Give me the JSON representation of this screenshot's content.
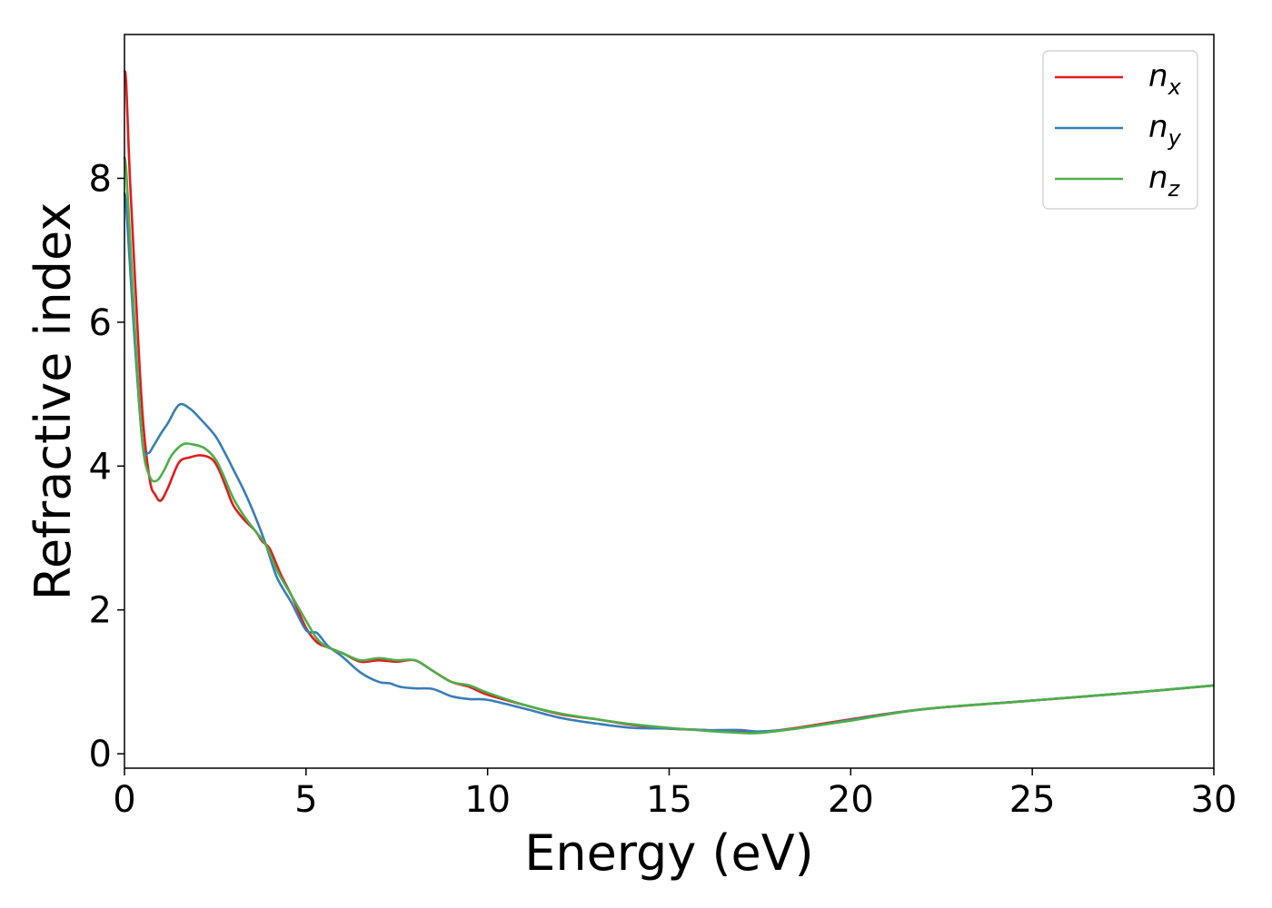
{
  "chart_data": {
    "type": "line",
    "title": "",
    "xlabel": "Energy (eV)",
    "ylabel": "Refractive index",
    "xlim": [
      0,
      30
    ],
    "ylim": [
      -0.2,
      10.0
    ],
    "xticks": [
      0,
      5,
      10,
      15,
      20,
      25,
      30
    ],
    "xtick_labels": [
      "0",
      "5",
      "10",
      "15",
      "20",
      "25",
      "30"
    ],
    "yticks": [
      0,
      2,
      4,
      6,
      8
    ],
    "ytick_labels": [
      "0",
      "2",
      "4",
      "6",
      "8"
    ],
    "grid": false,
    "legend_position": "top-right",
    "series": [
      {
        "name": "n",
        "subscript": "x",
        "color": "#e41a1c",
        "x": [
          0,
          0.05,
          0.15,
          0.3,
          0.5,
          0.7,
          0.85,
          1.0,
          1.2,
          1.5,
          1.8,
          2.1,
          2.4,
          2.6,
          2.8,
          3.0,
          3.3,
          3.6,
          3.8,
          4.0,
          4.3,
          4.6,
          5.0,
          5.3,
          5.6,
          6.0,
          6.5,
          7.0,
          7.5,
          8.0,
          8.5,
          9.0,
          9.5,
          10.0,
          11.0,
          12.0,
          13.0,
          14.0,
          15.0,
          16.0,
          17.0,
          17.5,
          18.5,
          20.0,
          22.0,
          25.0,
          28.0,
          30.0
        ],
        "values": [
          9.5,
          9.3,
          8.0,
          6.5,
          4.7,
          3.8,
          3.6,
          3.52,
          3.7,
          4.05,
          4.12,
          4.15,
          4.1,
          3.95,
          3.7,
          3.45,
          3.25,
          3.1,
          2.95,
          2.85,
          2.5,
          2.2,
          1.75,
          1.55,
          1.48,
          1.4,
          1.28,
          1.3,
          1.28,
          1.3,
          1.15,
          1.0,
          0.93,
          0.82,
          0.68,
          0.55,
          0.48,
          0.4,
          0.35,
          0.33,
          0.3,
          0.3,
          0.36,
          0.48,
          0.62,
          0.74,
          0.86,
          0.95
        ]
      },
      {
        "name": "n",
        "subscript": "y",
        "color": "#377eb8",
        "x": [
          0,
          0.05,
          0.15,
          0.3,
          0.5,
          0.65,
          0.8,
          1.0,
          1.2,
          1.5,
          1.8,
          2.1,
          2.5,
          2.8,
          3.0,
          3.3,
          3.6,
          3.9,
          4.2,
          4.6,
          5.0,
          5.3,
          5.6,
          6.0,
          6.5,
          7.0,
          7.3,
          7.6,
          8.0,
          8.5,
          9.0,
          9.5,
          10.0,
          11.0,
          12.0,
          13.0,
          14.0,
          15.0,
          16.0,
          16.5,
          17.0,
          17.5,
          18.5,
          20.0,
          22.0,
          25.0,
          28.0,
          30.0
        ],
        "values": [
          7.8,
          7.6,
          6.8,
          5.6,
          4.3,
          4.18,
          4.28,
          4.45,
          4.6,
          4.85,
          4.8,
          4.65,
          4.42,
          4.15,
          3.95,
          3.65,
          3.3,
          2.9,
          2.45,
          2.1,
          1.72,
          1.68,
          1.5,
          1.35,
          1.13,
          1.0,
          0.98,
          0.93,
          0.91,
          0.9,
          0.8,
          0.76,
          0.75,
          0.63,
          0.5,
          0.42,
          0.36,
          0.35,
          0.33,
          0.33,
          0.33,
          0.31,
          0.35,
          0.47,
          0.62,
          0.74,
          0.86,
          0.95
        ]
      },
      {
        "name": "n",
        "subscript": "z",
        "color": "#4daf4a",
        "x": [
          0,
          0.05,
          0.15,
          0.3,
          0.5,
          0.7,
          0.9,
          1.1,
          1.3,
          1.6,
          1.9,
          2.2,
          2.5,
          2.7,
          3.0,
          3.3,
          3.6,
          3.9,
          4.2,
          4.6,
          5.0,
          5.3,
          5.6,
          6.0,
          6.5,
          7.0,
          7.5,
          8.0,
          8.5,
          9.0,
          9.5,
          10.0,
          11.0,
          12.0,
          13.0,
          14.0,
          15.0,
          16.0,
          17.0,
          17.5,
          18.5,
          20.0,
          22.0,
          25.0,
          28.0,
          30.0
        ],
        "values": [
          8.3,
          8.1,
          7.2,
          5.8,
          4.3,
          3.85,
          3.8,
          3.95,
          4.15,
          4.3,
          4.3,
          4.25,
          4.1,
          3.9,
          3.55,
          3.3,
          3.1,
          2.9,
          2.55,
          2.2,
          1.85,
          1.6,
          1.48,
          1.4,
          1.3,
          1.33,
          1.3,
          1.3,
          1.15,
          1.0,
          0.95,
          0.85,
          0.68,
          0.56,
          0.48,
          0.41,
          0.36,
          0.32,
          0.29,
          0.29,
          0.35,
          0.46,
          0.62,
          0.74,
          0.86,
          0.95
        ]
      }
    ]
  }
}
